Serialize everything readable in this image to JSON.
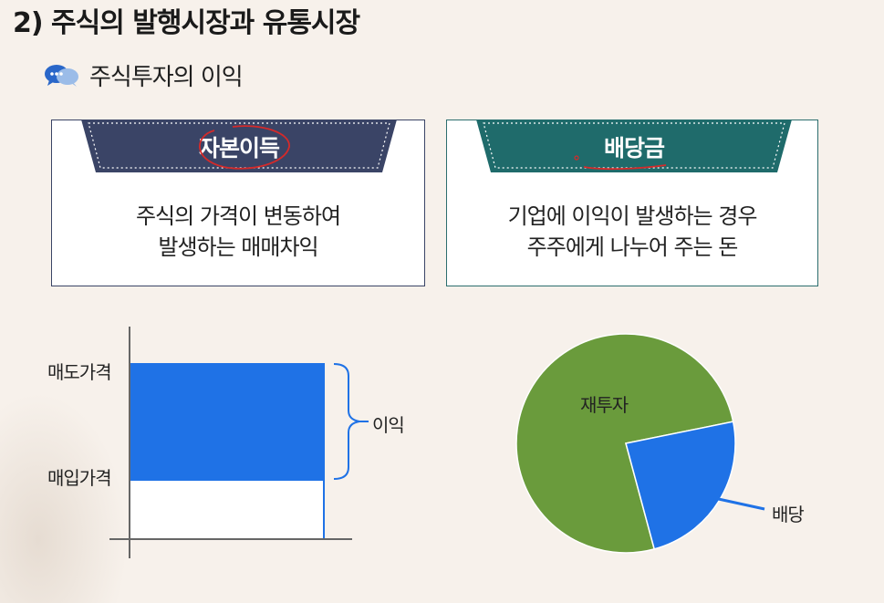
{
  "title": "2) 주식의 발행시장과 유통시장",
  "subtitle": {
    "icon": "speech-bubbles-icon",
    "text": "주식투자의 이익"
  },
  "cards": [
    {
      "label": "자본이득",
      "lines": [
        "주식의 가격이 변동하여",
        "발생하는 매매차익"
      ],
      "color": "#3a4466"
    },
    {
      "label": "배당금",
      "lines": [
        "기업에 이익이 발생하는 경우",
        "주주에게 나누어 주는 돈"
      ],
      "color": "#1f6b6b"
    }
  ],
  "chart_data": [
    {
      "type": "bar",
      "categories": [
        "매입가격",
        "매도가격"
      ],
      "tick_labels": [
        "매도가격",
        "매입가격"
      ],
      "bracket_label": "이익",
      "colors": {
        "profit": "#1f72e6",
        "base": "#ffffff"
      }
    },
    {
      "type": "pie",
      "slices": [
        {
          "label": "재투자",
          "value": 76,
          "color": "#6a9b3c"
        },
        {
          "label": "배당",
          "value": 24,
          "color": "#1f72e6"
        }
      ]
    }
  ]
}
